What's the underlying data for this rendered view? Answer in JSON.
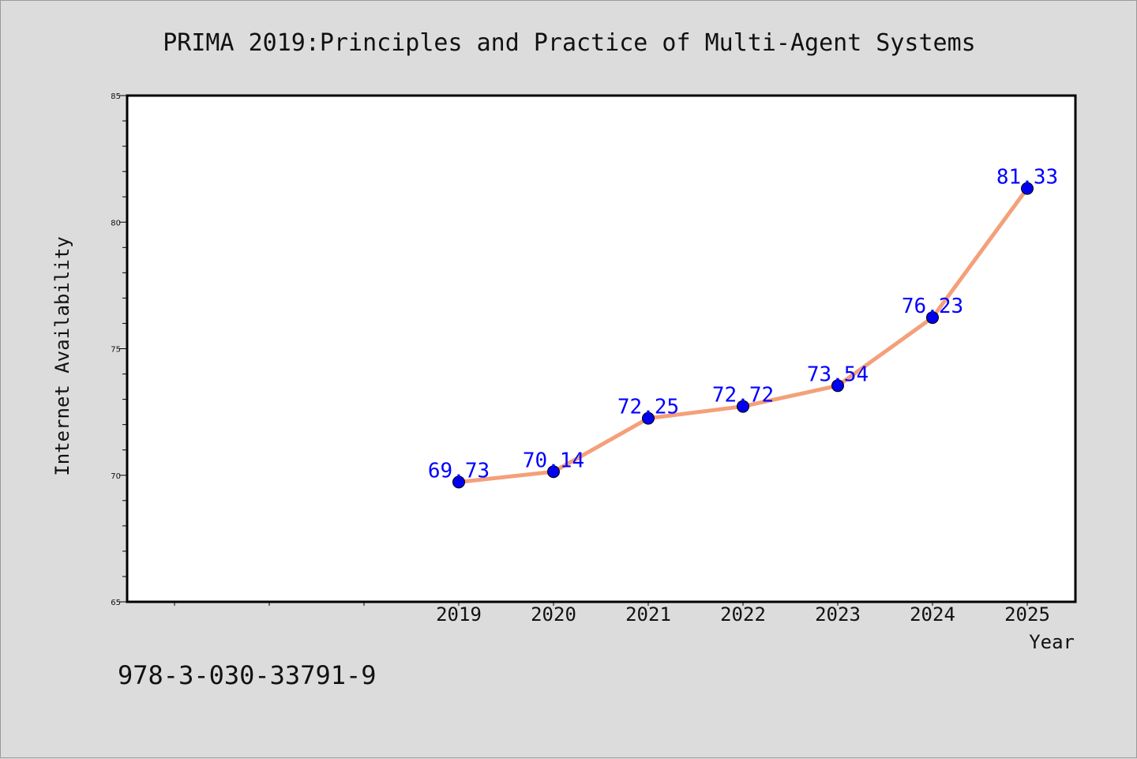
{
  "chart_data": {
    "type": "line",
    "title": "PRIMA 2019:Principles and Practice of Multi-Agent Systems",
    "xlabel": "Year",
    "ylabel": "Internet Availability",
    "x": [
      "2019",
      "2020",
      "2021",
      "2022",
      "2023",
      "2024",
      "2025"
    ],
    "series": [
      {
        "values": [
          69.73,
          70.14,
          72.25,
          72.72,
          73.54,
          76.23,
          81.33
        ],
        "labels": [
          "69.73",
          "70.14",
          "72.25",
          "72.72",
          "73.54",
          "76.23",
          "81.33"
        ]
      }
    ],
    "ylim": [
      65,
      85
    ],
    "yticks": [
      "65",
      "70",
      "75",
      "80",
      "85"
    ],
    "grid": false,
    "legend": "none",
    "colors": {
      "line": "#f4a07a",
      "marker": "#0000ee",
      "label": "#0000ff",
      "background": "#dcdcdc",
      "plot_bg": "#ffffff"
    }
  },
  "footnote": "978-3-030-33791-9"
}
